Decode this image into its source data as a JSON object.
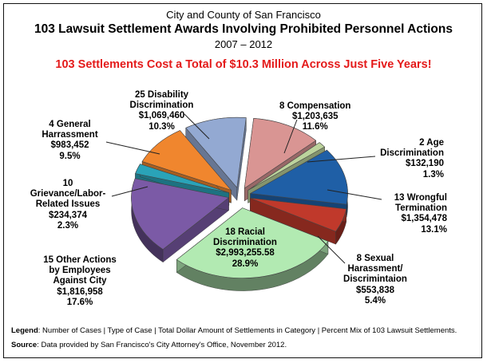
{
  "header": {
    "org": "City and County of San Francisco",
    "title": "103 Lawsuit Settlement Awards Involving Prohibited Personnel Actions",
    "years": "2007 – 2012",
    "headline": "103 Settlements Cost  a Total of $10.3 Million Across Just Five Years!"
  },
  "chart_data": {
    "type": "pie",
    "title": "103 Lawsuit Settlement Awards Involving Prohibited Personnel Actions",
    "slices": [
      {
        "key": "compensation",
        "lines": [
          "8 Compensation",
          "$1,203,635",
          "11.6%"
        ],
        "cases": 8,
        "amount": 1203635,
        "percent": 11.6,
        "color": "#d99593"
      },
      {
        "key": "age",
        "lines": [
          "2 Age",
          "Discrimination",
          "$132,190",
          "1.3%"
        ],
        "cases": 2,
        "amount": 132190,
        "percent": 1.3,
        "color": "#bcd39c"
      },
      {
        "key": "wrongful-termination",
        "lines": [
          "13 Wrongful",
          "Termination",
          "$1,354,478",
          "13.1%"
        ],
        "cases": 13,
        "amount": 1354478,
        "percent": 13.1,
        "color": "#1f5fa6"
      },
      {
        "key": "sexual-harassment",
        "lines": [
          "8 Sexual",
          "Harassment/",
          "Discrimintaion",
          "$553,838",
          "5.4%"
        ],
        "cases": 8,
        "amount": 553838,
        "percent": 5.4,
        "color": "#c0392b"
      },
      {
        "key": "racial-discrimination",
        "lines": [
          "18 Racial",
          "Discrimination",
          "$2,993,255.58",
          "28.9%"
        ],
        "cases": 18,
        "amount": 2993255.58,
        "percent": 28.9,
        "color": "#b2eab2"
      },
      {
        "key": "other-actions",
        "lines": [
          "15 Other Actions",
          "by Employees",
          "Against City",
          "$1,816,958",
          "17.6%"
        ],
        "cases": 15,
        "amount": 1816958,
        "percent": 17.6,
        "color": "#7b5aa6"
      },
      {
        "key": "grievance",
        "lines": [
          "10",
          "Grievance/Labor-",
          "Related Issues",
          "$234,374",
          "2.3%"
        ],
        "cases": 10,
        "amount": 234374,
        "percent": 2.3,
        "color": "#2aa3b8"
      },
      {
        "key": "general-harassment",
        "lines": [
          "4 General",
          "Harrassment",
          "$983,452",
          "9.5%"
        ],
        "cases": 4,
        "amount": 983452,
        "percent": 9.5,
        "color": "#f0862e"
      },
      {
        "key": "disability",
        "lines": [
          "25 Disability",
          "Discrimination",
          "$1,069,460",
          "10.3%"
        ],
        "cases": 25,
        "amount": 1069460,
        "percent": 10.3,
        "color": "#93a9d2"
      }
    ]
  },
  "footer": {
    "legend_label": "Legend",
    "legend_text": ":  Number of Cases | Type of Case | Total Dollar Amount of Settlements in Category | Percent Mix of 103 Lawsuit Settlements.",
    "source_label": "Source",
    "source_text": ":  Data provided by San Francisco's City Attorney's Office, November 2012."
  }
}
